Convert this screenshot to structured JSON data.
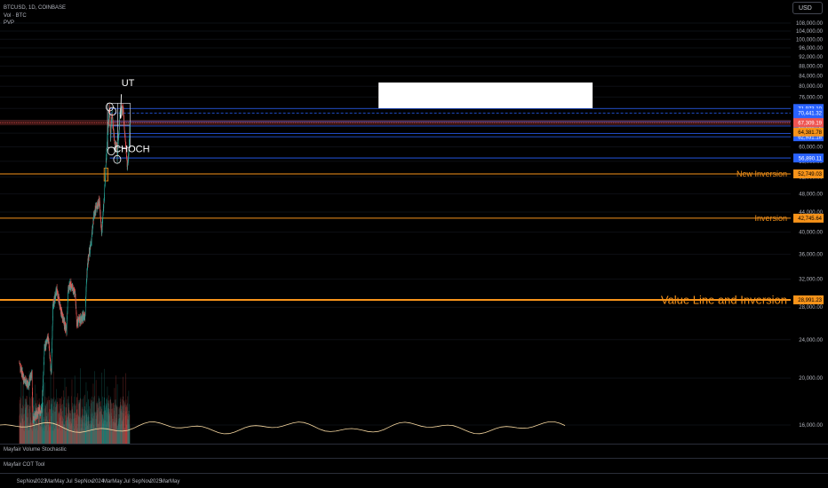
{
  "header": {
    "symbol_line": "BTCUSD, 1D, COINBASE",
    "volume_label": "Vol · BTC",
    "pvp_label": "PVP",
    "currency_button": "USD"
  },
  "panes": {
    "stochastic_label": "Mayfair Volume Stochastic",
    "cot_label": "Mayfair COT Tool"
  },
  "colors": {
    "up": "#26a69a",
    "down": "#ef5350",
    "level_line": "#f7931a",
    "blue_level": "#2962ff",
    "axis_text": "#b2b5be",
    "background": "#000000"
  },
  "chart_data": {
    "type": "candlestick",
    "y_axis": {
      "scale": "log",
      "ticks": [
        16000,
        20000,
        24000,
        28000,
        32000,
        36000,
        40000,
        44000,
        48000,
        52000,
        56000,
        60000,
        64000,
        68000,
        72000,
        76000,
        80000,
        84000,
        88000,
        92000,
        96000,
        100000,
        104000,
        108000
      ],
      "tick_labels": [
        "16,000.00",
        "20,000.00",
        "24,000.00",
        "28,000.00",
        "32,000.00",
        "36,000.00",
        "40,000.00",
        "44,000.00",
        "48,000.00",
        "52,000.00",
        "56,000.00",
        "60,000.00",
        "64,000.00",
        "68,000.00",
        "72,000.00",
        "76,000.00",
        "80,000.00",
        "84,000.00",
        "88,000.00",
        "92,000.00",
        "96,000.00",
        "100,000.00",
        "104,000.00",
        "108,000.00"
      ]
    },
    "x_axis": {
      "ticks": [
        {
          "label": "Sep",
          "date": "2022-09-01"
        },
        {
          "label": "Nov",
          "date": "2022-11-01"
        },
        {
          "label": "2023",
          "date": "2023-01-01"
        },
        {
          "label": "Mar",
          "date": "2023-03-01"
        },
        {
          "label": "May",
          "date": "2023-05-01"
        },
        {
          "label": "Jul",
          "date": "2023-07-01"
        },
        {
          "label": "Sep",
          "date": "2023-09-01"
        },
        {
          "label": "Nov",
          "date": "2023-11-01"
        },
        {
          "label": "2024",
          "date": "2024-01-01"
        },
        {
          "label": "Mar",
          "date": "2024-03-01"
        },
        {
          "label": "May",
          "date": "2024-05-01"
        },
        {
          "label": "Jul",
          "date": "2024-07-01"
        },
        {
          "label": "Sep",
          "date": "2024-09-01"
        },
        {
          "label": "Nov",
          "date": "2024-11-01"
        },
        {
          "label": "2025",
          "date": "2025-01-01"
        },
        {
          "label": "Mar",
          "date": "2025-03-01"
        },
        {
          "label": "May",
          "date": "2025-05-01"
        }
      ]
    },
    "price_path": [
      [
        "2022-08-20",
        21500
      ],
      [
        "2022-09-15",
        20000
      ],
      [
        "2022-10-15",
        19300
      ],
      [
        "2022-11-08",
        20500
      ],
      [
        "2022-11-12",
        16500
      ],
      [
        "2022-12-15",
        17000
      ],
      [
        "2023-01-10",
        17200
      ],
      [
        "2023-01-25",
        23000
      ],
      [
        "2023-02-20",
        24200
      ],
      [
        "2023-03-10",
        20200
      ],
      [
        "2023-03-20",
        28000
      ],
      [
        "2023-04-14",
        30500
      ],
      [
        "2023-05-10",
        27500
      ],
      [
        "2023-06-15",
        25000
      ],
      [
        "2023-06-25",
        30500
      ],
      [
        "2023-07-14",
        31200
      ],
      [
        "2023-08-10",
        29500
      ],
      [
        "2023-08-18",
        26000
      ],
      [
        "2023-09-15",
        26500
      ],
      [
        "2023-10-10",
        27000
      ],
      [
        "2023-10-25",
        34500
      ],
      [
        "2023-11-15",
        37500
      ],
      [
        "2023-12-08",
        44000
      ],
      [
        "2024-01-10",
        46500
      ],
      [
        "2024-01-23",
        39500
      ],
      [
        "2024-02-10",
        48000
      ],
      [
        "2024-02-28",
        62000
      ],
      [
        "2024-03-14",
        72000
      ],
      [
        "2024-03-20",
        62500
      ],
      [
        "2024-03-28",
        70500
      ],
      [
        "2024-04-17",
        60500
      ],
      [
        "2024-04-30",
        60000
      ],
      [
        "2024-05-01",
        57000
      ],
      [
        "2024-05-20",
        71000
      ],
      [
        "2024-06-07",
        71500
      ],
      [
        "2024-06-24",
        60500
      ],
      [
        "2024-07-05",
        54000
      ],
      [
        "2024-07-12",
        57500
      ],
      [
        "2024-07-20",
        66800
      ]
    ],
    "levels": [
      {
        "label": "New Inversion",
        "value": 52749.03,
        "value_label": "52,749.03",
        "start": "2022-08-15",
        "thickness": 1
      },
      {
        "label": "Inversion",
        "value": 42745.64,
        "value_label": "42,745.64",
        "start": "2022-08-15",
        "thickness": 1
      },
      {
        "label": "Value Line and Inversion",
        "value": 28991.23,
        "value_label": "28,991.23",
        "start": "2022-08-15",
        "thickness": 2
      }
    ],
    "blue_levels": [
      {
        "value": 71973.1,
        "label": "71,973.10"
      },
      {
        "value": 70441.32,
        "label": "70,441.32",
        "dashed": true
      },
      {
        "value": 67641.89,
        "label": "67,641.89"
      },
      {
        "value": 66238.72,
        "label": "66,238.72"
      },
      {
        "value": 63904.21,
        "label": "63,904.21"
      },
      {
        "value": 62931.18,
        "label": "62,931.18"
      },
      {
        "value": 56890.11,
        "label": "56,890.11"
      }
    ],
    "price_labels": [
      {
        "value": 67309.19,
        "label": "67,309.19",
        "kind": "current"
      },
      {
        "value": 64381.78,
        "label": "64,381.78",
        "kind": "orange"
      }
    ],
    "annotations": [
      {
        "text": "CHOCH",
        "date": "2024-04-10",
        "value": 58500
      },
      {
        "text": "UT",
        "date": "2024-05-28",
        "value": 80000
      }
    ],
    "range_box": {
      "start": "2024-03-01",
      "end": "2024-07-22",
      "top": 73800,
      "bottom": 59800
    },
    "range_divider": "2024-05-05",
    "range_midline": 66500,
    "inversion_box": {
      "start": "2024-02-08",
      "end": "2024-03-04",
      "top": 54200,
      "bottom": 51000
    }
  }
}
